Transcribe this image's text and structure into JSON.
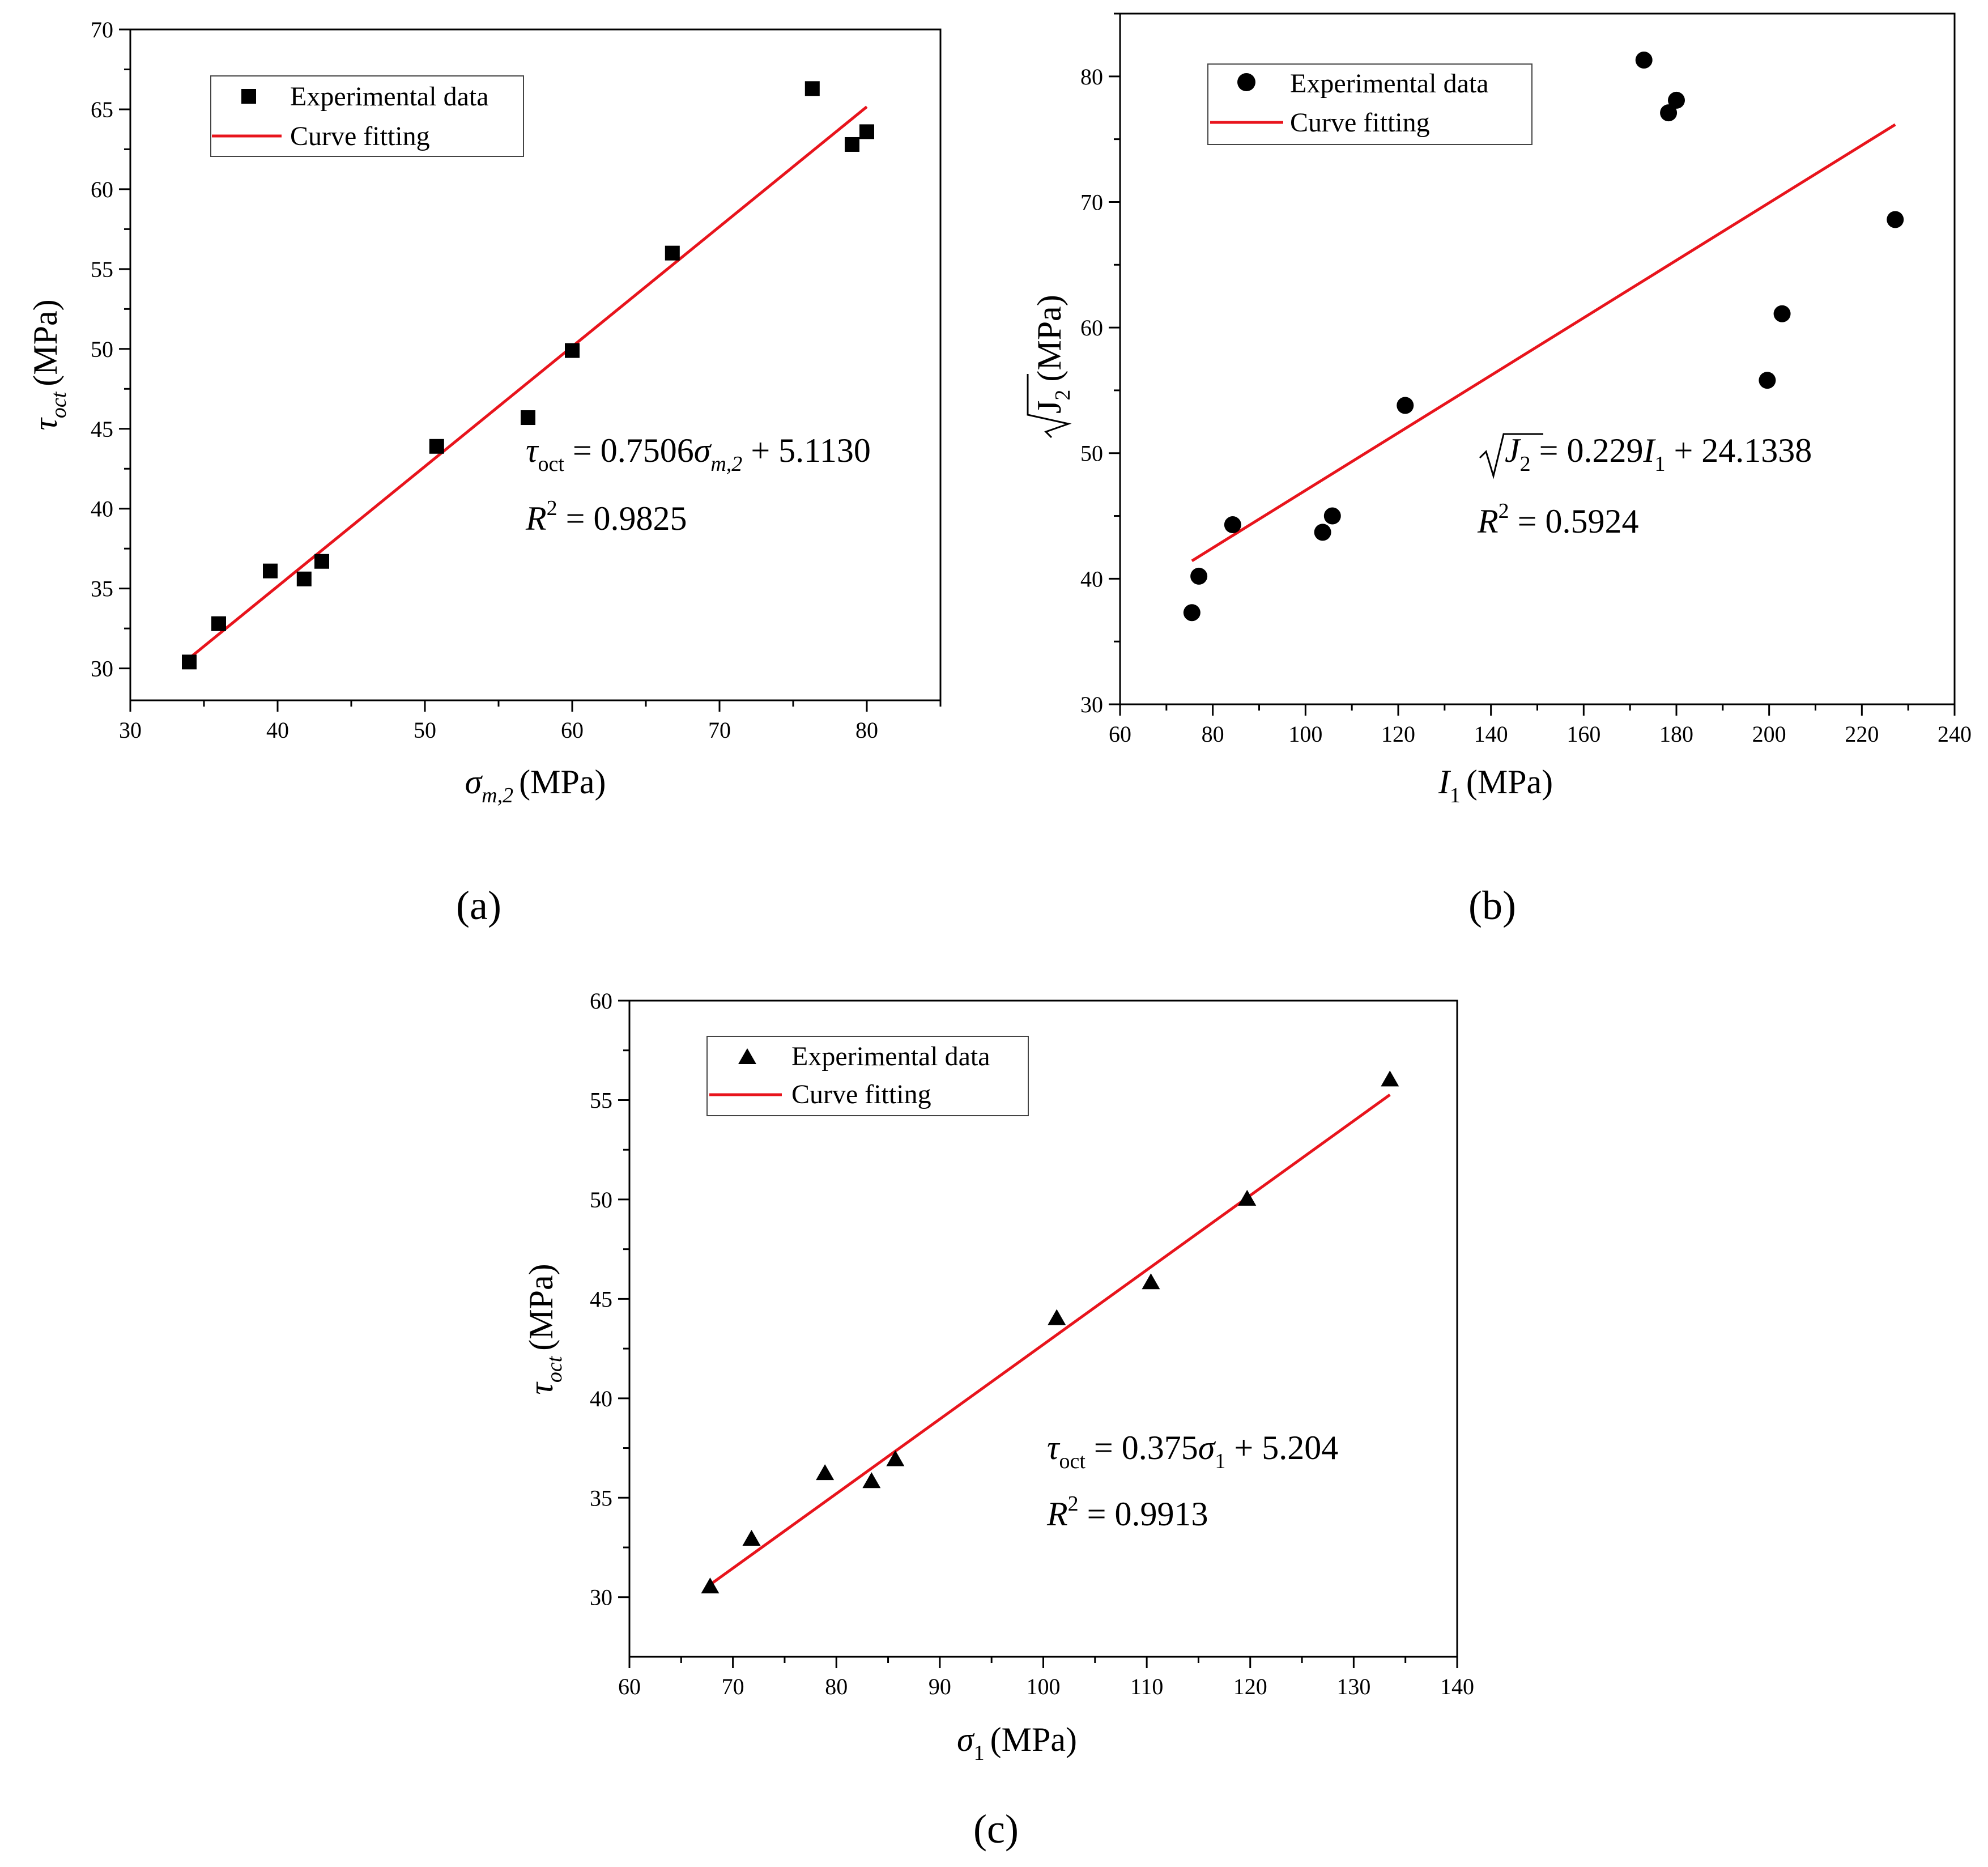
{
  "figure": {
    "panel_labels": [
      "(a)",
      "(b)",
      "(c)"
    ]
  },
  "chart_data": [
    {
      "type": "scatter",
      "panel": "(a)",
      "xlabel": "σm,2 (MPa)",
      "ylabel": "τoct (MPa)",
      "xlim": [
        30,
        85
      ],
      "ylim": [
        28,
        70
      ],
      "xticks": [
        30,
        40,
        50,
        60,
        70,
        80
      ],
      "yticks": [
        30,
        35,
        40,
        45,
        50,
        55,
        60,
        65,
        70
      ],
      "legend": {
        "position": "top-left",
        "entries": [
          "Experimental data",
          "Curve fitting"
        ]
      },
      "marker": "square",
      "series": [
        {
          "name": "Experimental data",
          "x": [
            34.0,
            36.0,
            39.5,
            41.8,
            43.0,
            50.8,
            57.0,
            60.0,
            66.8,
            76.3,
            79.0,
            80.0
          ],
          "y": [
            30.4,
            32.8,
            36.1,
            35.6,
            36.7,
            43.9,
            45.7,
            49.9,
            56.0,
            66.3,
            62.8,
            63.6
          ]
        }
      ],
      "fit": {
        "name": "Curve fitting",
        "slope": 0.7506,
        "intercept": 5.113,
        "x_range": [
          34.0,
          80.0
        ],
        "r2": 0.9825
      },
      "equation": {
        "lhs": "τ",
        "lhs_sub": "oct",
        "text1": " = 0.7506",
        "var": "σ",
        "var_sub": "m,2",
        "text2": " + 5.1130"
      },
      "r2_text": {
        "lhs": "R",
        "sup": "2",
        "text": " = 0.9825"
      }
    },
    {
      "type": "scatter",
      "panel": "(b)",
      "xlabel": "I1 (MPa)",
      "ylabel": "√J2 (MPa)",
      "xlim": [
        60,
        240
      ],
      "ylim": [
        30,
        85
      ],
      "xticks": [
        60,
        80,
        100,
        120,
        140,
        160,
        180,
        200,
        220,
        240
      ],
      "yticks": [
        30,
        40,
        50,
        60,
        70,
        80
      ],
      "legend": {
        "position": "top-left",
        "entries": [
          "Experimental data",
          "Curve fitting"
        ]
      },
      "marker": "circle",
      "series": [
        {
          "name": "Experimental data",
          "x": [
            75.5,
            77.0,
            84.3,
            103.7,
            105.8,
            121.5,
            173.0,
            178.3,
            180.0,
            199.6,
            202.8,
            227.2
          ],
          "y": [
            37.3,
            40.2,
            44.3,
            43.7,
            45.0,
            53.8,
            81.3,
            77.1,
            78.1,
            55.8,
            61.1,
            68.6
          ]
        }
      ],
      "fit": {
        "name": "Curve fitting",
        "slope": 0.229,
        "intercept": 24.1338,
        "x_range": [
          75.5,
          227.2
        ],
        "r2": 0.5924
      },
      "equation": {
        "lhs": "J",
        "lhs_sub": "2",
        "text1": " = 0.229",
        "var": "I",
        "var_sub": "1",
        "text2": " + 24.1338"
      },
      "r2_text": {
        "lhs": "R",
        "sup": "2",
        "text": " = 0.5924"
      }
    },
    {
      "type": "scatter",
      "panel": "(c)",
      "xlabel": "σ1 (MPa)",
      "ylabel": "τoct (MPa)",
      "xlim": [
        60,
        140
      ],
      "ylim": [
        27,
        60
      ],
      "xticks": [
        60,
        70,
        80,
        90,
        100,
        110,
        120,
        130,
        140
      ],
      "yticks": [
        30,
        35,
        40,
        45,
        50,
        55,
        60
      ],
      "legend": {
        "position": "top-left",
        "entries": [
          "Experimental data",
          "Curve fitting"
        ]
      },
      "marker": "triangle",
      "series": [
        {
          "name": "Experimental data",
          "x": [
            67.8,
            71.8,
            78.9,
            83.4,
            85.7,
            101.3,
            110.4,
            119.7,
            133.5
          ],
          "y": [
            30.5,
            32.9,
            36.2,
            35.8,
            36.9,
            44.0,
            45.8,
            50.0,
            56.0
          ]
        }
      ],
      "fit": {
        "name": "Curve fitting",
        "slope": 0.375,
        "intercept": 5.204,
        "x_range": [
          67.8,
          133.5
        ],
        "r2": 0.9913
      },
      "equation": {
        "lhs": "τ",
        "lhs_sub": "oct",
        "text1": " = 0.375",
        "var": "σ",
        "var_sub": "1",
        "text2": " + 5.204"
      },
      "r2_text": {
        "lhs": "R",
        "sup": "2",
        "text": " = 0.9913"
      }
    }
  ],
  "axis_text": {
    "a": {
      "x_sym": "σ",
      "x_sub": "m,2",
      "y_sym": "τ",
      "y_sub": "oct",
      "unit": "MPa"
    },
    "b": {
      "x_sym": "I",
      "x_sub": "1",
      "y_sym": "J",
      "y_sub": "2",
      "unit": "MPa"
    },
    "c": {
      "x_sym": "σ",
      "x_sub": "1",
      "y_sym": "τ",
      "y_sub": "oct",
      "unit": "MPa"
    }
  },
  "colors": {
    "fit_line": "#e8141c",
    "marker": "#000000",
    "axis": "#000000"
  }
}
